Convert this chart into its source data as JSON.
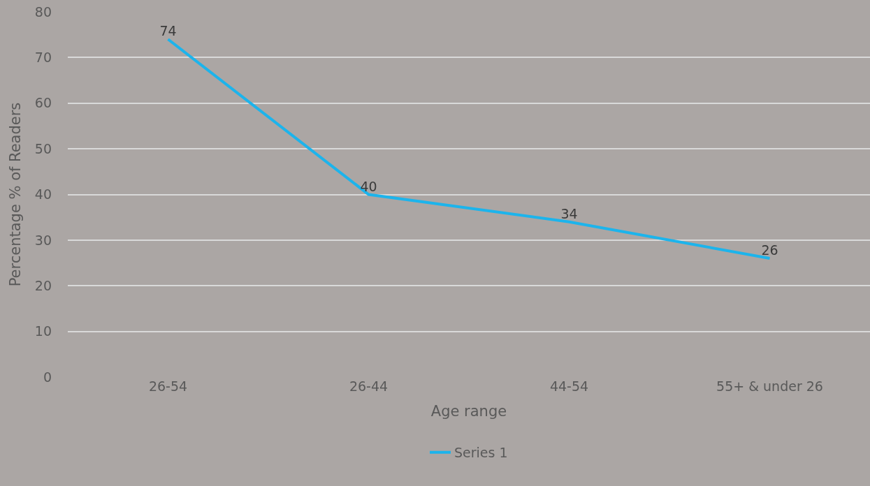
{
  "chart_data": {
    "type": "line",
    "xlabel": "Age range",
    "ylabel": "Percentage % of Readers",
    "categories": [
      "26-54",
      "26-44",
      "44-54",
      "55+ & under 26"
    ],
    "series": [
      {
        "name": "Series 1",
        "color": "#1cb4ec",
        "values": [
          74,
          40,
          34,
          26
        ]
      }
    ],
    "ylim": [
      0,
      80
    ],
    "yticks": [
      0,
      10,
      20,
      30,
      40,
      50,
      60,
      70,
      80
    ],
    "grid": "y",
    "legend": "bottom",
    "data_labels": true,
    "marker": "none",
    "line_style": "solid"
  }
}
